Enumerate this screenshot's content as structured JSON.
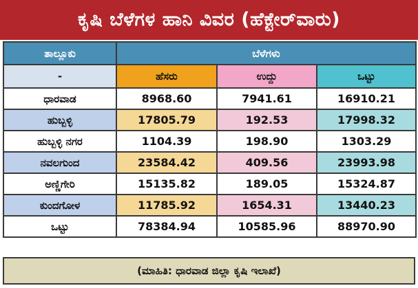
{
  "title": "ಕೃಷಿ ಬೆಳೆಗಳ ಹಾನಿ ವಿವರ (ಹೆಕ್ಟೇರ್‌ವಾರು)",
  "header": {
    "taluk": "ತಾಲ್ಲೂಕು",
    "crops": "ಬೆಳೆಗಳು",
    "dash": "-",
    "col1": "ಹೆಸರು",
    "col2": "ಉದ್ದು",
    "col3": "ಒಟ್ಟು"
  },
  "rows": [
    {
      "name": "ಧಾರವಾಡ",
      "v1": "8968.60",
      "v2": "7941.61",
      "v3": "16910.21"
    },
    {
      "name": "ಹುಬ್ಬಳ್ಳಿ",
      "v1": "17805.79",
      "v2": "192.53",
      "v3": "17998.32"
    },
    {
      "name": "ಹುಬ್ಬಳ್ಳಿ ನಗರ",
      "v1": "1104.39",
      "v2": "198.90",
      "v3": "1303.29"
    },
    {
      "name": "ನವಲಗುಂದ",
      "v1": "23584.42",
      "v2": "409.56",
      "v3": "23993.98"
    },
    {
      "name": "ಅಣ್ಣಿಗೇರಿ",
      "v1": "15135.82",
      "v2": "189.05",
      "v3": "15324.87"
    },
    {
      "name": "ಕುಂದಗೋಳ",
      "v1": "11785.92",
      "v2": "1654.31",
      "v3": "13440.23"
    },
    {
      "name": "ಒಟ್ಟು",
      "v1": "78384.94",
      "v2": "10585.96",
      "v3": "88970.90"
    }
  ],
  "source": "(ಮಾಹಿತಿ: ಧಾರವಾಡ ಜಿಲ್ಲಾ ಕೃಷಿ ಇಲಾಖೆ)",
  "colors": {
    "title_bg": "#b3262b",
    "header_bg": "#4a8fb5",
    "col1_header": "#f0a21c",
    "col2_header": "#f2a6c8",
    "col3_header": "#4fc1cf",
    "footer_bg": "#ded9b9"
  }
}
